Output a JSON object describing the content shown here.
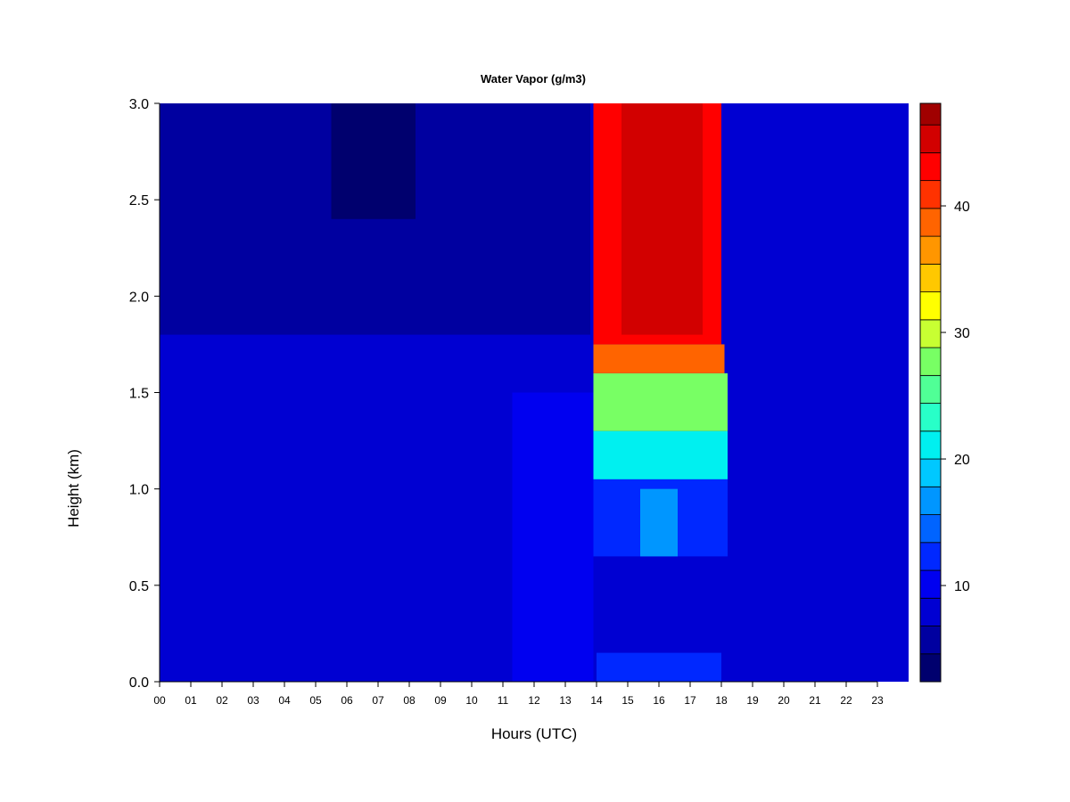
{
  "chart_data": {
    "type": "heatmap",
    "title": "Water Vapor (g/m3)",
    "xlabel": "Hours (UTC)",
    "ylabel": "Height (km)",
    "x_ticks": [
      "00",
      "01",
      "02",
      "03",
      "04",
      "05",
      "06",
      "07",
      "08",
      "09",
      "10",
      "11",
      "12",
      "13",
      "14",
      "15",
      "16",
      "17",
      "18",
      "19",
      "20",
      "21",
      "22",
      "23"
    ],
    "x_range": [
      0,
      24
    ],
    "y_ticks": [
      "0.0",
      "0.5",
      "1.0",
      "1.5",
      "2.0",
      "2.5",
      "3.0"
    ],
    "y_range": [
      0,
      3
    ],
    "colorbar": {
      "ticks": [
        "10",
        "20",
        "30",
        "40"
      ],
      "range": [
        2.4,
        48.1
      ],
      "levels": [
        2.4,
        4.6,
        6.8,
        9.0,
        11.2,
        13.4,
        15.6,
        17.8,
        20.0,
        22.2,
        24.4,
        26.6,
        28.8,
        31.0,
        33.2,
        35.4,
        37.6,
        39.8,
        42.0,
        44.2,
        46.4,
        48.1
      ],
      "colors": [
        "#00006e",
        "#0000a0",
        "#0000d2",
        "#0000f0",
        "#0028ff",
        "#0064ff",
        "#0096ff",
        "#00c8ff",
        "#00f0f0",
        "#28ffc8",
        "#50ff96",
        "#78ff64",
        "#c8ff32",
        "#ffff00",
        "#ffc800",
        "#ff9600",
        "#ff6400",
        "#ff3200",
        "#ff0000",
        "#d20000",
        "#a00000",
        "#780000"
      ]
    },
    "regions": [
      {
        "x": [
          0,
          24
        ],
        "y": [
          0,
          3
        ],
        "value": 8
      },
      {
        "x": [
          0,
          13.8
        ],
        "y": [
          1.8,
          3
        ],
        "value": 6
      },
      {
        "x": [
          5.5,
          8.2
        ],
        "y": [
          2.4,
          3
        ],
        "value": 4
      },
      {
        "x": [
          6.1,
          7.9
        ],
        "y": [
          2.8,
          3
        ],
        "value": 3
      },
      {
        "x": [
          11.3,
          13.9
        ],
        "y": [
          0,
          1.5
        ],
        "value": 9
      },
      {
        "x": [
          14,
          18
        ],
        "y": [
          0,
          0.15
        ],
        "value": 12
      },
      {
        "x": [
          13.9,
          18.2
        ],
        "y": [
          0.15,
          0.35
        ],
        "value": 8
      },
      {
        "x": [
          13.9,
          18.2
        ],
        "y": [
          0.35,
          0.65
        ],
        "value": 7
      },
      {
        "x": [
          13.9,
          18.2
        ],
        "y": [
          0.65,
          1.05
        ],
        "value": 12
      },
      {
        "x": [
          15.4,
          16.6
        ],
        "y": [
          0.65,
          1.0
        ],
        "value": 17
      },
      {
        "x": [
          13.9,
          18.2
        ],
        "y": [
          1.05,
          1.3
        ],
        "value": 22
      },
      {
        "x": [
          13.9,
          18.2
        ],
        "y": [
          1.3,
          1.6
        ],
        "value": 28
      },
      {
        "x": [
          13.9,
          18.1
        ],
        "y": [
          1.6,
          1.75
        ],
        "value": 38
      },
      {
        "x": [
          13.9,
          18.0
        ],
        "y": [
          1.75,
          3
        ],
        "value": 44
      },
      {
        "x": [
          14.8,
          17.4
        ],
        "y": [
          1.8,
          3
        ],
        "value": 46
      }
    ]
  }
}
